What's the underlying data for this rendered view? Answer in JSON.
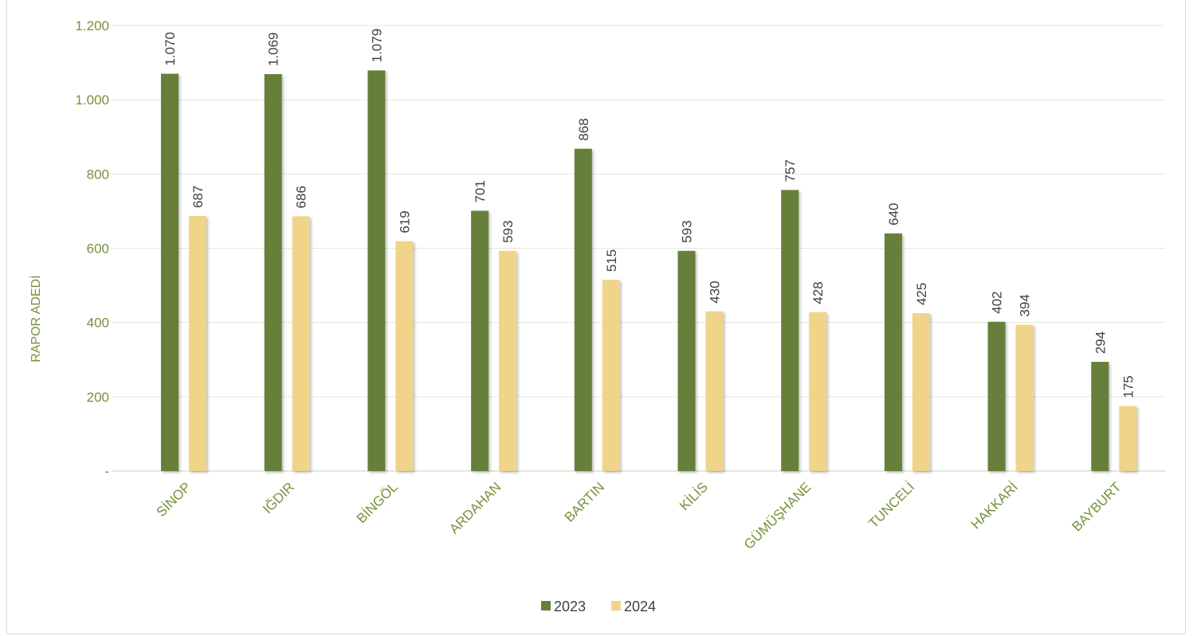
{
  "chart_data": {
    "type": "bar",
    "ylabel": "RAPOR ADEDİ",
    "xlabel": "",
    "ylim": [
      0,
      1200
    ],
    "yticks": [
      {
        "value": 0,
        "label": "-"
      },
      {
        "value": 200,
        "label": "200"
      },
      {
        "value": 400,
        "label": "400"
      },
      {
        "value": 600,
        "label": "600"
      },
      {
        "value": 800,
        "label": "800"
      },
      {
        "value": 1000,
        "label": "1.000"
      },
      {
        "value": 1200,
        "label": "1.200"
      }
    ],
    "grid": true,
    "legend_position": "bottom",
    "categories": [
      "SİNOP",
      "IĞDIR",
      "BİNGÖL",
      "ARDAHAN",
      "BARTIN",
      "KİLİS",
      "GÜMÜŞHANE",
      "TUNCELİ",
      "HAKKARİ",
      "BAYBURT"
    ],
    "series": [
      {
        "name": "2023",
        "color": "#66803a",
        "values": [
          1070,
          1069,
          1079,
          701,
          868,
          593,
          757,
          640,
          402,
          294
        ],
        "labels": [
          "1.070",
          "1.069",
          "1.079",
          "701",
          "868",
          "593",
          "757",
          "640",
          "402",
          "294"
        ]
      },
      {
        "name": "2024",
        "color": "#efd48a",
        "values": [
          687,
          686,
          619,
          593,
          515,
          430,
          428,
          425,
          394,
          175
        ],
        "labels": [
          "687",
          "686",
          "619",
          "593",
          "515",
          "430",
          "428",
          "425",
          "394",
          "175"
        ]
      }
    ]
  }
}
